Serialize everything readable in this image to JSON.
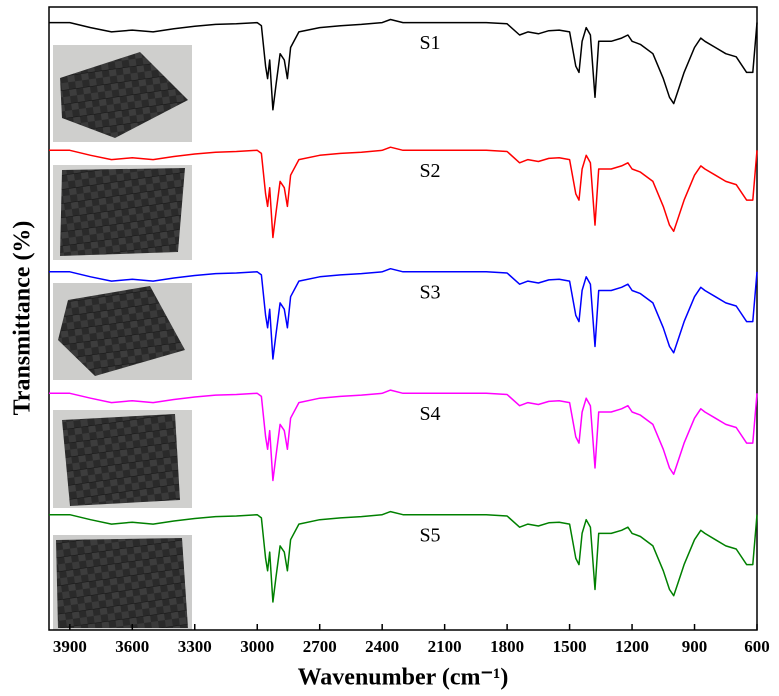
{
  "chart_data": {
    "type": "line",
    "xlabel": "Wavenumber (cm⁻¹)",
    "ylabel": "Transmittance (%)",
    "x": [
      4000,
      3900,
      3800,
      3700,
      3600,
      3500,
      3400,
      3300,
      3200,
      3100,
      3000,
      2980,
      2960,
      2950,
      2940,
      2925,
      2910,
      2890,
      2870,
      2855,
      2840,
      2800,
      2700,
      2600,
      2500,
      2400,
      2360,
      2300,
      2200,
      2100,
      2000,
      1900,
      1800,
      1740,
      1700,
      1650,
      1600,
      1550,
      1500,
      1470,
      1455,
      1440,
      1420,
      1400,
      1378,
      1360,
      1300,
      1250,
      1220,
      1200,
      1160,
      1100,
      1050,
      1020,
      1000,
      980,
      950,
      900,
      870,
      850,
      800,
      750,
      700,
      650,
      620,
      600
    ],
    "xlim": [
      4000,
      600
    ],
    "xticks": [
      3900,
      3600,
      3300,
      3000,
      2700,
      2400,
      2100,
      1800,
      1500,
      1200,
      900,
      600
    ],
    "ylim": [
      0,
      100
    ],
    "yticks": [],
    "series": [
      {
        "name": "S1",
        "color": "#000000",
        "values": [
          97.5,
          97.5,
          96.7,
          96,
          96.3,
          96,
          96.5,
          96.9,
          97.2,
          97.3,
          97.5,
          97,
          90.5,
          88.5,
          91.5,
          83.5,
          87.5,
          92.5,
          91.5,
          88.5,
          93.5,
          96,
          96.7,
          97,
          97.2,
          97.5,
          98,
          97.5,
          97.5,
          97.5,
          97.5,
          97.5,
          97.3,
          95.5,
          96,
          95.7,
          96.2,
          96.3,
          96,
          90.5,
          89.5,
          94.5,
          96.7,
          95.5,
          85.5,
          94.5,
          94.5,
          95,
          95.5,
          94.5,
          94,
          92.5,
          88.5,
          85.5,
          84.5,
          86.5,
          89.5,
          93.5,
          95,
          94.5,
          93.5,
          92.5,
          92,
          89.5,
          89.5,
          97.5
        ]
      },
      {
        "name": "S2",
        "color": "#ff0000",
        "values": [
          77,
          77,
          76.2,
          75.5,
          75.8,
          75.5,
          76,
          76.4,
          76.7,
          76.8,
          77,
          76.5,
          70,
          68,
          71,
          63,
          67,
          72,
          71,
          68,
          73,
          75.5,
          76.2,
          76.5,
          76.7,
          77,
          77.5,
          77,
          77,
          77,
          77,
          77,
          76.8,
          75,
          75.5,
          75.2,
          75.7,
          75.8,
          75.5,
          70,
          69,
          74,
          76.2,
          75,
          65,
          74,
          74,
          74.5,
          75,
          74,
          73.5,
          72,
          68,
          65,
          64,
          66,
          69,
          73,
          74.5,
          74,
          73,
          72,
          71.5,
          69,
          69,
          77
        ]
      },
      {
        "name": "S3",
        "color": "#0000ff",
        "values": [
          57.5,
          57.5,
          56.7,
          56,
          56.3,
          56,
          56.5,
          56.9,
          57.2,
          57.3,
          57.5,
          57,
          50.5,
          48.5,
          51.5,
          43.5,
          47.5,
          52.5,
          51.5,
          48.5,
          53.5,
          56,
          56.7,
          57,
          57.2,
          57.5,
          58,
          57.5,
          57.5,
          57.5,
          57.5,
          57.5,
          57.3,
          55.5,
          56,
          55.7,
          56.2,
          56.3,
          56,
          50.5,
          49.5,
          54.5,
          56.7,
          55.5,
          45.5,
          54.5,
          54.5,
          55,
          55.5,
          54.5,
          54,
          52.5,
          48.5,
          45.5,
          44.5,
          46.5,
          49.5,
          53.5,
          55,
          54.5,
          53.5,
          52.5,
          52,
          49.5,
          49.5,
          57.5
        ]
      },
      {
        "name": "S4",
        "color": "#ff00ff",
        "values": [
          38,
          38,
          37.2,
          36.5,
          36.8,
          36.5,
          37,
          37.4,
          37.7,
          37.8,
          38,
          37.5,
          31,
          29,
          32,
          24,
          28,
          33,
          32,
          29,
          34,
          36.5,
          37.2,
          37.5,
          37.7,
          38,
          38.5,
          38,
          38,
          38,
          38,
          38,
          37.8,
          36,
          36.5,
          36.2,
          36.7,
          36.8,
          36.5,
          31,
          30,
          35,
          37.2,
          36,
          26,
          35,
          35,
          35.5,
          36,
          35,
          34.5,
          33,
          29,
          26,
          25,
          27,
          30,
          34,
          35.5,
          35,
          34,
          33,
          32.5,
          30,
          30,
          38
        ]
      },
      {
        "name": "S5",
        "color": "#008000",
        "values": [
          18.5,
          18.5,
          17.7,
          17,
          17.3,
          17,
          17.5,
          17.9,
          18.2,
          18.3,
          18.5,
          18,
          11.5,
          9.5,
          12.5,
          4.5,
          8.5,
          13.5,
          12.5,
          9.5,
          14.5,
          17,
          17.7,
          18,
          18.2,
          18.5,
          19,
          18.5,
          18.5,
          18.5,
          18.5,
          18.5,
          18.3,
          16.5,
          17,
          16.7,
          17.2,
          17.3,
          17,
          11.5,
          10.5,
          15.5,
          17.7,
          16.5,
          6.5,
          15.5,
          15.5,
          16,
          16.5,
          15.5,
          15,
          13.5,
          9.5,
          6.5,
          5.5,
          7.5,
          10.5,
          14.5,
          16,
          15.5,
          14.5,
          13.5,
          13,
          10.5,
          10.5,
          18.5
        ]
      }
    ]
  }
}
